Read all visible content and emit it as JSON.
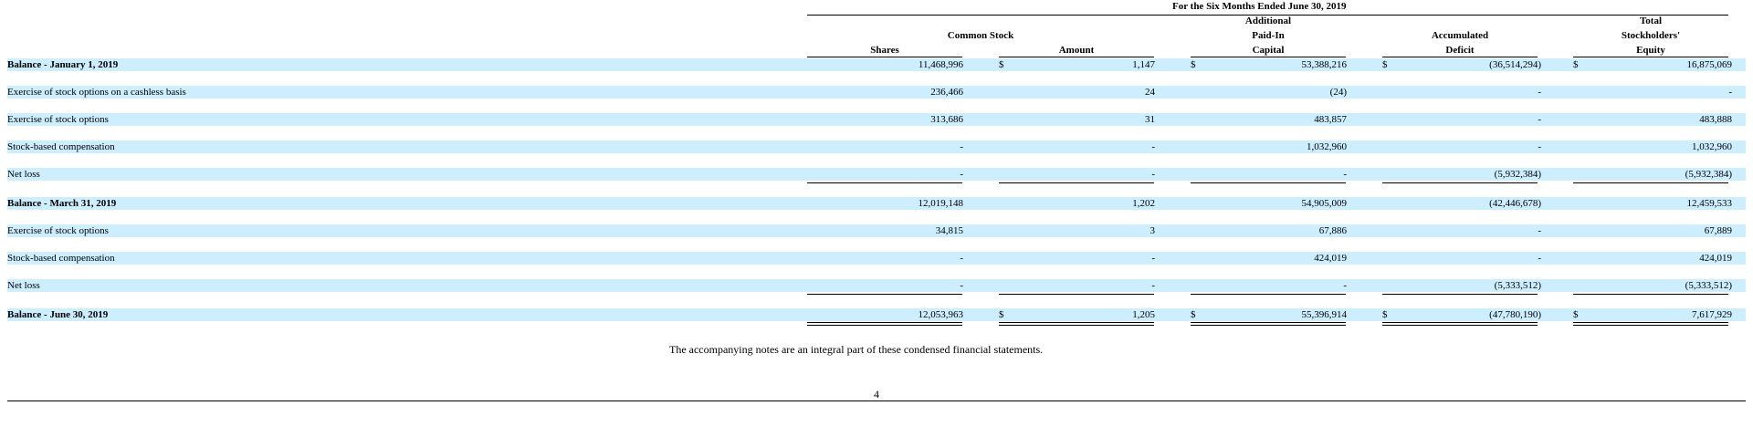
{
  "header": {
    "period": "For the Six Months Ended June 30, 2019",
    "common_stock": "Common Stock",
    "shares": "Shares",
    "amount": "Amount",
    "apic": [
      "Additional",
      "Paid-In",
      "Capital"
    ],
    "deficit": [
      "Accumulated",
      "Deficit"
    ],
    "equity": [
      "Total",
      "Stockholders'",
      "Equity"
    ]
  },
  "rows": [
    {
      "label": "Balance - January 1, 2019",
      "bold": true,
      "dollar": true,
      "shares": "11,468,996",
      "amount": "1,147",
      "apic": "53,388,216",
      "deficit": "(36,514,294)",
      "equity": "16,875,069"
    },
    {
      "label": "Exercise of stock options on a cashless basis",
      "bold": false,
      "dollar": false,
      "shares": "236,466",
      "amount": "24",
      "apic": "(24)",
      "deficit": "-",
      "equity": "-"
    },
    {
      "label": "Exercise of stock options",
      "bold": false,
      "dollar": false,
      "shares": "313,686",
      "amount": "31",
      "apic": "483,857",
      "deficit": "-",
      "equity": "483,888"
    },
    {
      "label": "Stock-based compensation",
      "bold": false,
      "dollar": false,
      "shares": "-",
      "amount": "-",
      "apic": "1,032,960",
      "deficit": "-",
      "equity": "1,032,960"
    },
    {
      "label": "Net loss",
      "bold": false,
      "dollar": false,
      "underline": "single",
      "shares": "-",
      "amount": "-",
      "apic": "-",
      "deficit": "(5,932,384)",
      "equity": "(5,932,384)"
    },
    {
      "label": "Balance - March 31, 2019",
      "bold": true,
      "dollar": false,
      "shares": "12,019,148",
      "amount": "1,202",
      "apic": "54,905,009",
      "deficit": "(42,446,678)",
      "equity": "12,459,533"
    },
    {
      "label": "Exercise of stock options",
      "bold": false,
      "dollar": false,
      "shares": "34,815",
      "amount": "3",
      "apic": "67,886",
      "deficit": "-",
      "equity": "67,889"
    },
    {
      "label": "Stock-based compensation",
      "bold": false,
      "dollar": false,
      "shares": "-",
      "amount": "-",
      "apic": "424,019",
      "deficit": "-",
      "equity": "424,019"
    },
    {
      "label": "Net loss",
      "bold": false,
      "dollar": false,
      "underline": "single",
      "shares": "-",
      "amount": "-",
      "apic": "-",
      "deficit": "(5,333,512)",
      "equity": "(5,333,512)"
    },
    {
      "label": "Balance - June 30, 2019",
      "bold": true,
      "dollar": true,
      "underline": "double",
      "shares": "12,053,963",
      "amount": "1,205",
      "apic": "55,396,914",
      "deficit": "(47,780,190)",
      "equity": "7,617,929"
    }
  ],
  "footer_note": "The accompanying notes are an integral part of these condensed financial statements.",
  "page_number": "4",
  "colors": {
    "row_band": "#cceeff"
  }
}
